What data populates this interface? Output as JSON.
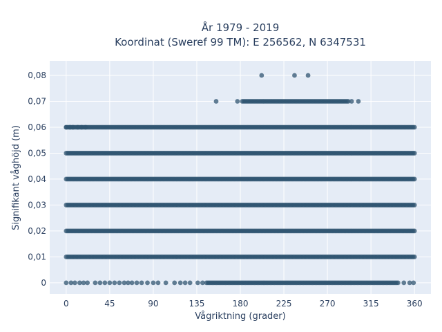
{
  "chart_data": {
    "type": "scatter",
    "title_line1": "År 1979 - 2019",
    "title_line2": "Koordinat (Sweref 99 TM): E 256562, N 6347531",
    "xlabel": "Vågriktning (grader)",
    "ylabel": "Signifikant våghöjd (m)",
    "xlim": [
      -17,
      377
    ],
    "ylim": [
      -0.0043,
      0.0856
    ],
    "x_ticks": [
      0,
      45,
      90,
      135,
      180,
      225,
      270,
      315,
      360
    ],
    "x_tick_labels": [
      "0",
      "45",
      "90",
      "135",
      "180",
      "225",
      "270",
      "315",
      "360"
    ],
    "y_ticks": [
      0,
      0.01,
      0.02,
      0.03,
      0.04,
      0.05,
      0.06,
      0.07,
      0.08
    ],
    "y_tick_labels": [
      "0",
      "0,01",
      "0,02",
      "0,03",
      "0,04",
      "0,05",
      "0,06",
      "0,07",
      "0,08"
    ],
    "grid": true,
    "marker_color": "#2f5470",
    "plot_bg": "#e5ecf6",
    "series": [
      {
        "bands": [
          {
            "y": 0.01,
            "x_start": 0,
            "x_end": 360
          },
          {
            "y": 0.02,
            "x_start": 0,
            "x_end": 360
          },
          {
            "y": 0.03,
            "x_start": 0,
            "x_end": 360
          },
          {
            "y": 0.04,
            "x_start": 0,
            "x_end": 360
          },
          {
            "y": 0.05,
            "x_start": 0,
            "x_end": 360
          },
          {
            "y": 0.06,
            "x_start": 0,
            "x_end": 360
          },
          {
            "y": 0.07,
            "x_start": 182,
            "x_end": 292
          },
          {
            "y": 0,
            "x_start": 145,
            "x_end": 344
          }
        ],
        "points": [
          {
            "x": 202,
            "y": 0.08
          },
          {
            "x": 236,
            "y": 0.08
          },
          {
            "x": 250,
            "y": 0.08
          },
          {
            "x": 155,
            "y": 0.07
          },
          {
            "x": 177,
            "y": 0.07
          },
          {
            "x": 295,
            "y": 0.07
          },
          {
            "x": 302,
            "y": 0.07
          },
          {
            "x": 0,
            "y": 0.06
          },
          {
            "x": 4,
            "y": 0.06
          },
          {
            "x": 7,
            "y": 0.06
          },
          {
            "x": 12,
            "y": 0.06
          },
          {
            "x": 16,
            "y": 0.06
          },
          {
            "x": 20,
            "y": 0.06
          },
          {
            "x": 0,
            "y": 0
          },
          {
            "x": 5,
            "y": 0
          },
          {
            "x": 9,
            "y": 0
          },
          {
            "x": 14,
            "y": 0
          },
          {
            "x": 18,
            "y": 0
          },
          {
            "x": 22,
            "y": 0
          },
          {
            "x": 30,
            "y": 0
          },
          {
            "x": 35,
            "y": 0
          },
          {
            "x": 40,
            "y": 0
          },
          {
            "x": 45,
            "y": 0
          },
          {
            "x": 50,
            "y": 0
          },
          {
            "x": 55,
            "y": 0
          },
          {
            "x": 60,
            "y": 0
          },
          {
            "x": 64,
            "y": 0
          },
          {
            "x": 68,
            "y": 0
          },
          {
            "x": 73,
            "y": 0
          },
          {
            "x": 78,
            "y": 0
          },
          {
            "x": 84,
            "y": 0
          },
          {
            "x": 90,
            "y": 0
          },
          {
            "x": 95,
            "y": 0
          },
          {
            "x": 103,
            "y": 0
          },
          {
            "x": 112,
            "y": 0
          },
          {
            "x": 118,
            "y": 0
          },
          {
            "x": 123,
            "y": 0
          },
          {
            "x": 128,
            "y": 0
          },
          {
            "x": 136,
            "y": 0
          },
          {
            "x": 141,
            "y": 0
          },
          {
            "x": 349,
            "y": 0
          },
          {
            "x": 355,
            "y": 0
          },
          {
            "x": 359,
            "y": 0
          }
        ]
      }
    ]
  }
}
